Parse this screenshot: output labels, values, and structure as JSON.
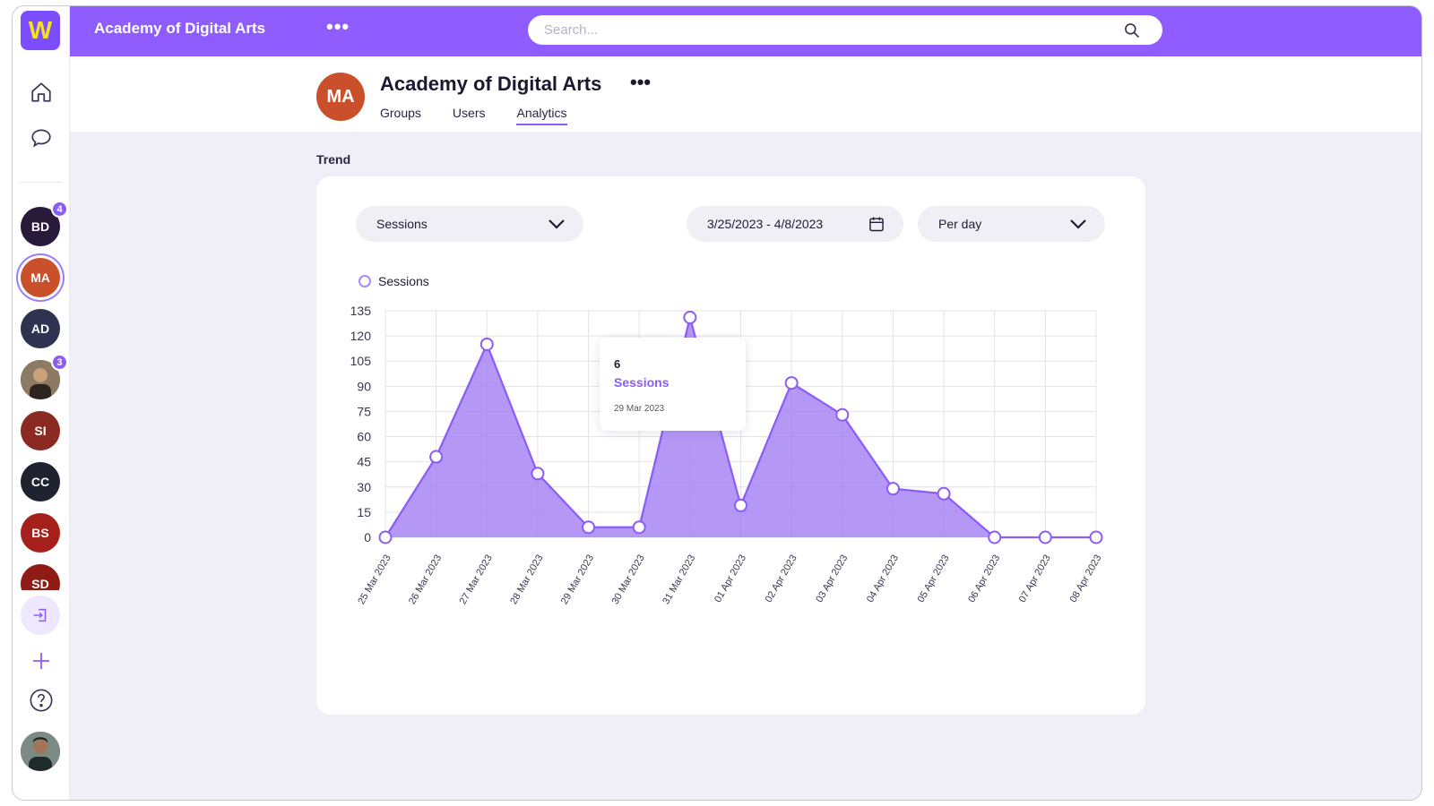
{
  "app": {
    "logo_letter": "W"
  },
  "topbar": {
    "title": "Academy of Digital Arts",
    "menu": "•••",
    "search_placeholder": "Search..."
  },
  "sidebar": {
    "workspaces": [
      {
        "initials": "BD",
        "color": "#2a1a3a",
        "badge": "4"
      },
      {
        "initials": "MA",
        "color": "#c9502b",
        "active": true
      },
      {
        "initials": "AD",
        "color": "#2d3350"
      },
      {
        "initials": "",
        "color": "#7a6a55",
        "badge": "3",
        "photo": true
      },
      {
        "initials": "SI",
        "color": "#8a2a22"
      },
      {
        "initials": "CC",
        "color": "#1f2330"
      },
      {
        "initials": "BS",
        "color": "#a5201b"
      },
      {
        "initials": "SD",
        "color": "#8e1c15"
      }
    ]
  },
  "header": {
    "avatar": "MA",
    "title": "Academy of Digital Arts",
    "menu": "•••",
    "tabs": [
      {
        "label": "Groups",
        "active": false
      },
      {
        "label": "Users",
        "active": false
      },
      {
        "label": "Analytics",
        "active": true
      }
    ]
  },
  "section_label": "Trend",
  "controls": {
    "metric": "Sessions",
    "date_range": "3/25/2023 - 4/8/2023",
    "interval": "Per day"
  },
  "legend": {
    "series": "Sessions"
  },
  "tooltip": {
    "value": "6",
    "series": "Sessions",
    "date": "29 Mar 2023"
  },
  "colors": {
    "accent": "#8b5cf6",
    "fill": "#a885f5"
  },
  "chart_data": {
    "type": "area",
    "x": [
      "25 Mar 2023",
      "26 Mar 2023",
      "27 Mar 2023",
      "28 Mar 2023",
      "29 Mar 2023",
      "30 Mar 2023",
      "31 Mar 2023",
      "01 Apr 2023",
      "02 Apr 2023",
      "03 Apr 2023",
      "04 Apr 2023",
      "05 Apr 2023",
      "06 Apr 2023",
      "07 Apr 2023",
      "08 Apr 2023"
    ],
    "series": [
      {
        "name": "Sessions",
        "values": [
          0,
          48,
          115,
          38,
          6,
          6,
          131,
          19,
          92,
          73,
          29,
          26,
          0,
          0,
          0
        ]
      }
    ],
    "yticks": [
      0,
      15,
      30,
      45,
      60,
      75,
      90,
      105,
      120,
      135
    ],
    "ylim": [
      0,
      135
    ],
    "grid": true,
    "legend": "top-left"
  }
}
